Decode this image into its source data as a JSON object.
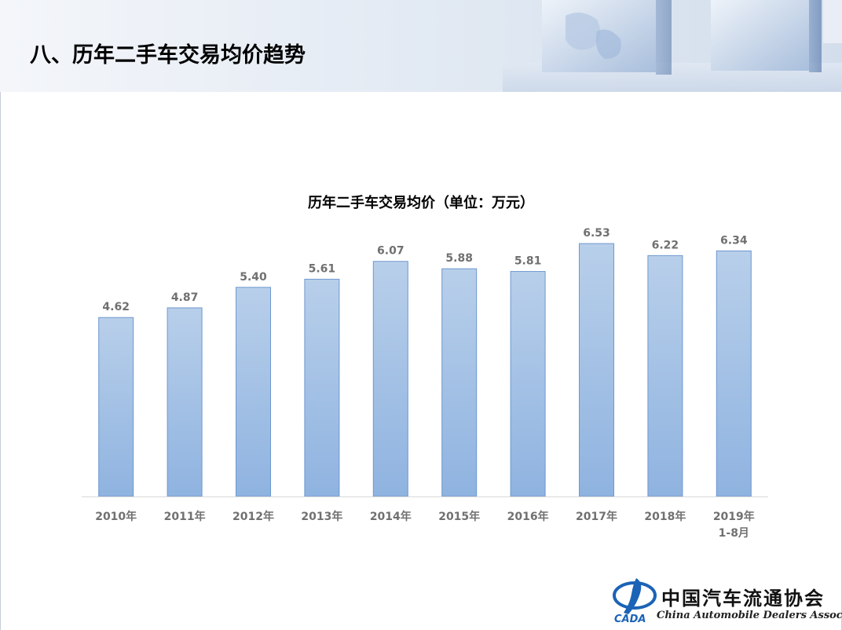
{
  "page": {
    "title": "八、历年二手车交易均价趋势"
  },
  "chart_data": {
    "type": "bar",
    "title": "历年二手车交易均价（单位：万元）",
    "categories": [
      [
        "2010年"
      ],
      [
        "2011年"
      ],
      [
        "2012年"
      ],
      [
        "2013年"
      ],
      [
        "2014年"
      ],
      [
        "2015年"
      ],
      [
        "2016年"
      ],
      [
        "2017年"
      ],
      [
        "2018年"
      ],
      [
        "2019年",
        "1-8月"
      ]
    ],
    "values": [
      4.62,
      4.87,
      5.4,
      5.61,
      6.07,
      5.88,
      5.81,
      6.53,
      6.22,
      6.34
    ],
    "value_labels": [
      "4.62",
      "4.87",
      "5.40",
      "5.61",
      "6.07",
      "5.88",
      "5.81",
      "6.53",
      "6.22",
      "6.34"
    ],
    "ylim": [
      0,
      7
    ],
    "grid": false,
    "bar_color_top": "#b8cfea",
    "bar_color_bottom": "#8fb3e0",
    "bar_border": "#6e98cf",
    "label_color": "#707070"
  },
  "logo": {
    "cn": "中国汽车流通协会",
    "en": "China Automobile Dealers Association",
    "mark": "CADA"
  }
}
